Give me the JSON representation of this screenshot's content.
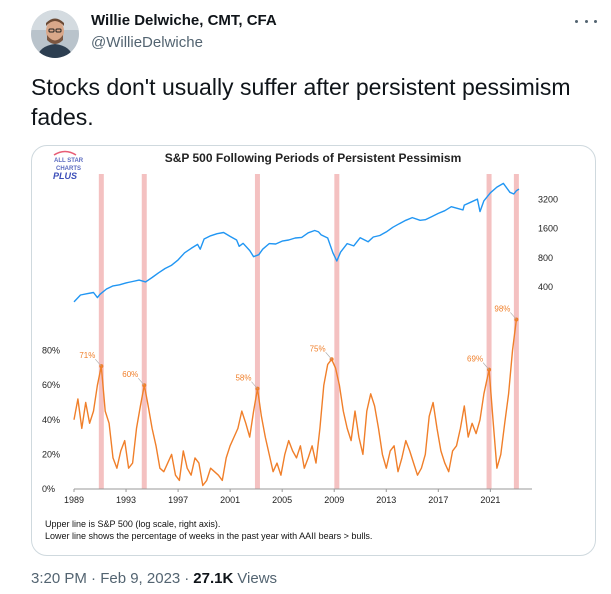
{
  "tweet": {
    "author_name": "Willie Delwiche, CMT, CFA",
    "author_handle": "@WillieDelwiche",
    "text": "Stocks don't usually suffer after persistent pessimism fades.",
    "timestamp": "3:20 PM · Feb 9, 2023",
    "separator": "·",
    "views_count": "27.1K",
    "views_label": "Views",
    "icons": [
      "avatar",
      "more-options-icon"
    ]
  },
  "colors": {
    "sp500_line": "#2196f3",
    "pessimism_line": "#f07f2a",
    "highlight_band": "#f2b6b6"
  },
  "chart_data": {
    "type": "line",
    "title": "S&P 500 Following Periods of Persistent Pessimism",
    "logo_text": [
      "ALL STAR",
      "CHARTS",
      "PLUS"
    ],
    "x_range": [
      1989,
      2024.2
    ],
    "x_ticks": [
      1989,
      1993,
      1997,
      2001,
      2005,
      2009,
      2013,
      2017,
      2021
    ],
    "right_axis": {
      "scale": "log",
      "range": [
        140,
        5600
      ],
      "ticks": [
        400,
        800,
        1600,
        3200
      ],
      "tick_labels": [
        "400",
        "800",
        "1600",
        "3200"
      ]
    },
    "left_axis": {
      "range": [
        0,
        100
      ],
      "ticks": [
        0,
        20,
        40,
        60,
        80
      ],
      "tick_labels": [
        "0%",
        "20%",
        "40%",
        "60%",
        "80%"
      ]
    },
    "highlight_years": [
      1991.1,
      1994.4,
      2003.1,
      2009.2,
      2020.9,
      2023.0
    ],
    "series": [
      {
        "name": "S&P 500 (log scale, right axis)",
        "x": [
          1989,
          1989.5,
          1990,
          1990.5,
          1990.8,
          1991,
          1991.5,
          1992,
          1992.5,
          1993,
          1993.5,
          1994,
          1994.5,
          1995,
          1995.5,
          1996,
          1996.5,
          1997,
          1997.5,
          1998,
          1998.5,
          1998.7,
          1999,
          1999.5,
          2000,
          2000.5,
          2001,
          2001.5,
          2001.7,
          2002,
          2002.5,
          2002.8,
          2003.2,
          2003.5,
          2004,
          2004.5,
          2005,
          2005.5,
          2006,
          2006.5,
          2007,
          2007.5,
          2007.8,
          2008,
          2008.5,
          2008.9,
          2009.2,
          2009.5,
          2010,
          2010.5,
          2011,
          2011.6,
          2012,
          2012.5,
          2013,
          2013.5,
          2014,
          2014.5,
          2015,
          2015.6,
          2016,
          2016.5,
          2017,
          2017.5,
          2018,
          2018.9,
          2019,
          2019.5,
          2020,
          2020.2,
          2020.5,
          2021,
          2021.5,
          2022,
          2022.5,
          2022.8,
          2023,
          2023.2
        ],
        "values": [
          280,
          330,
          340,
          350,
          310,
          335,
          380,
          410,
          420,
          440,
          455,
          470,
          450,
          500,
          560,
          620,
          670,
          760,
          900,
          1000,
          1100,
          980,
          1250,
          1350,
          1420,
          1460,
          1330,
          1220,
          1050,
          1130,
          950,
          820,
          860,
          980,
          1120,
          1110,
          1190,
          1220,
          1280,
          1300,
          1450,
          1530,
          1480,
          1380,
          1280,
          900,
          740,
          920,
          1120,
          1060,
          1290,
          1170,
          1310,
          1360,
          1480,
          1650,
          1800,
          1950,
          2080,
          1950,
          1980,
          2130,
          2300,
          2450,
          2700,
          2500,
          2800,
          3000,
          3230,
          2400,
          3100,
          3750,
          4300,
          4700,
          3800,
          3650,
          3950,
          4100
        ]
      },
      {
        "name": "% of weeks in past year with AAII bears > bulls",
        "x": [
          1989,
          1989.3,
          1989.6,
          1989.9,
          1990.2,
          1990.5,
          1990.8,
          1991.1,
          1991.4,
          1991.7,
          1992.0,
          1992.3,
          1992.6,
          1992.9,
          1993.2,
          1993.5,
          1993.8,
          1994.1,
          1994.4,
          1994.7,
          1995.0,
          1995.3,
          1995.6,
          1995.9,
          1996.2,
          1996.5,
          1996.8,
          1997.1,
          1997.4,
          1997.7,
          1998.0,
          1998.3,
          1998.6,
          1998.9,
          1999.2,
          1999.5,
          1999.8,
          2000.1,
          2000.4,
          2000.7,
          2001.0,
          2001.3,
          2001.6,
          2001.9,
          2002.2,
          2002.5,
          2002.8,
          2003.1,
          2003.4,
          2003.7,
          2004.0,
          2004.3,
          2004.6,
          2004.9,
          2005.2,
          2005.5,
          2005.8,
          2006.1,
          2006.4,
          2006.7,
          2007.0,
          2007.3,
          2007.6,
          2007.9,
          2008.2,
          2008.5,
          2008.8,
          2009.1,
          2009.4,
          2009.7,
          2010.0,
          2010.3,
          2010.6,
          2010.9,
          2011.2,
          2011.5,
          2011.8,
          2012.1,
          2012.4,
          2012.7,
          2013.0,
          2013.3,
          2013.6,
          2013.9,
          2014.2,
          2014.5,
          2014.8,
          2015.1,
          2015.4,
          2015.7,
          2016.0,
          2016.3,
          2016.6,
          2016.9,
          2017.2,
          2017.5,
          2017.8,
          2018.1,
          2018.4,
          2018.7,
          2019.0,
          2019.3,
          2019.6,
          2019.9,
          2020.2,
          2020.5,
          2020.9,
          2021.2,
          2021.5,
          2021.8,
          2022.1,
          2022.4,
          2022.7,
          2023.0
        ],
        "values": [
          40,
          52,
          35,
          50,
          38,
          45,
          60,
          71,
          45,
          38,
          18,
          12,
          22,
          28,
          12,
          15,
          35,
          48,
          60,
          48,
          35,
          25,
          12,
          10,
          15,
          20,
          8,
          5,
          22,
          12,
          8,
          18,
          15,
          2,
          5,
          12,
          10,
          8,
          5,
          18,
          25,
          30,
          35,
          45,
          38,
          30,
          45,
          58,
          42,
          30,
          20,
          10,
          15,
          8,
          20,
          28,
          22,
          18,
          25,
          12,
          18,
          25,
          15,
          35,
          60,
          72,
          75,
          70,
          60,
          45,
          35,
          28,
          45,
          30,
          20,
          45,
          55,
          48,
          35,
          20,
          12,
          22,
          25,
          10,
          18,
          28,
          22,
          15,
          8,
          12,
          20,
          42,
          50,
          35,
          22,
          15,
          10,
          22,
          25,
          35,
          48,
          30,
          38,
          32,
          40,
          55,
          69,
          40,
          12,
          20,
          38,
          55,
          80,
          98
        ]
      }
    ],
    "annotations": [
      {
        "label": "71%",
        "x": 1991.1,
        "y": 71
      },
      {
        "label": "60%",
        "x": 1994.4,
        "y": 60
      },
      {
        "label": "58%",
        "x": 2003.1,
        "y": 58
      },
      {
        "label": "75%",
        "x": 2008.8,
        "y": 75
      },
      {
        "label": "69%",
        "x": 2020.9,
        "y": 69
      },
      {
        "label": "98%",
        "x": 2023.0,
        "y": 98
      }
    ],
    "footnotes": [
      "Upper line is S&P 500 (log scale, right axis).",
      "Lower line shows the percentage of weeks in the past year with AAII bears > bulls."
    ]
  }
}
